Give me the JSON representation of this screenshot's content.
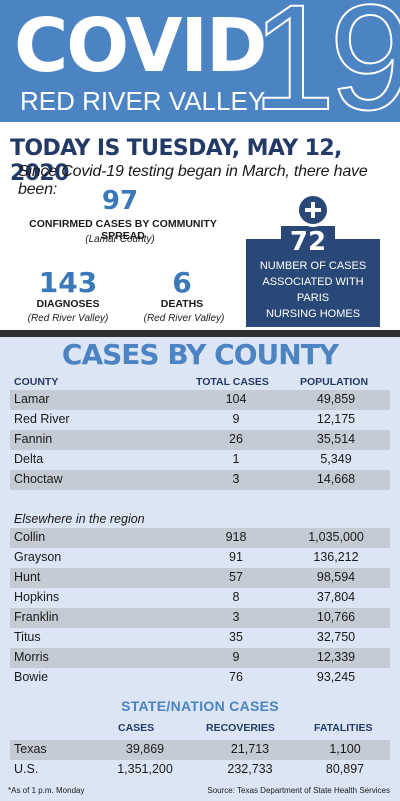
{
  "header": {
    "covid": "COVID",
    "number": "19",
    "region": "RED RIVER VALLEY"
  },
  "today": "TODAY IS TUESDAY, MAY 12, 2020",
  "since": "Since Covid-19 testing began in March, there have been:",
  "community": {
    "value": "97",
    "label": "CONFIRMED CASES BY COMMUNITY SPREAD",
    "sub": "(Lamar County)"
  },
  "diagnoses": {
    "value": "143",
    "label": "DIAGNOSES",
    "sub": "(Red River Valley)"
  },
  "deaths": {
    "value": "6",
    "label": "DEATHS",
    "sub": "(Red River Valley)"
  },
  "nursing": {
    "value": "72",
    "line1": "NUMBER OF CASES",
    "line2": "ASSOCIATED WITH",
    "line3": "PARIS",
    "line4": "NURSING HOMES",
    "icon": "plus-icon"
  },
  "county": {
    "title": "CASES BY COUNTY",
    "headers": {
      "county": "COUNTY",
      "cases": "TOTAL CASES",
      "population": "POPULATION"
    },
    "rows": [
      {
        "name": "Lamar",
        "cases": "104",
        "pop": "49,859"
      },
      {
        "name": "Red River",
        "cases": "9",
        "pop": "12,175"
      },
      {
        "name": "Fannin",
        "cases": "26",
        "pop": "35,514"
      },
      {
        "name": "Delta",
        "cases": "1",
        "pop": "5,349"
      },
      {
        "name": "Choctaw",
        "cases": "3",
        "pop": "14,668"
      }
    ],
    "elsewhere_label": "Elsewhere in the region",
    "region_rows": [
      {
        "name": "Collin",
        "cases": "918",
        "pop": "1,035,000"
      },
      {
        "name": "Grayson",
        "cases": "91",
        "pop": "136,212"
      },
      {
        "name": "Hunt",
        "cases": "57",
        "pop": "98,594"
      },
      {
        "name": "Hopkins",
        "cases": "8",
        "pop": "37,804"
      },
      {
        "name": "Franklin",
        "cases": "3",
        "pop": "10,766"
      },
      {
        "name": "Titus",
        "cases": "35",
        "pop": "32,750"
      },
      {
        "name": "Morris",
        "cases": "9",
        "pop": "12,339"
      },
      {
        "name": "Bowie",
        "cases": "76",
        "pop": "93,245"
      }
    ]
  },
  "state_nation": {
    "title": "STATE/NATION CASES",
    "headers": {
      "cases": "CASES",
      "recoveries": "RECOVERIES",
      "fatalities": "FATALITIES"
    },
    "rows": [
      {
        "name": "Texas",
        "cases": "39,869",
        "recoveries": "21,713",
        "fatalities": "1,100"
      },
      {
        "name": "U.S.",
        "cases": "1,351,200",
        "recoveries": "232,733",
        "fatalities": "80,897"
      }
    ]
  },
  "footer": {
    "note": "*As of 1 p.m. Monday",
    "source": "Source: Texas Department of State Health Services"
  },
  "colors": {
    "header_blue": "#4b83c3",
    "navy": "#2a4877",
    "table_bg": "#dbe5f3",
    "row_shade": "#c4cbd4"
  }
}
